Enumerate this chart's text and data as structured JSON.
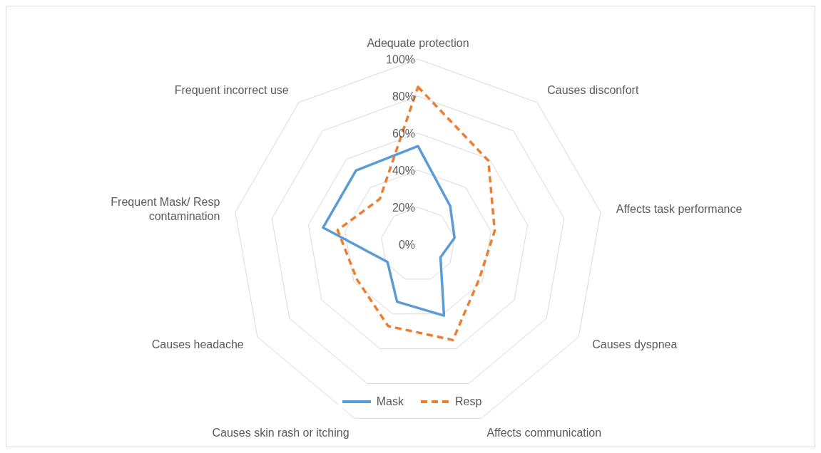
{
  "chart_data": {
    "type": "radar",
    "categories": [
      "Adequate protection",
      "Causes disconfort",
      "Affects task performance",
      "Causes dyspnea",
      "Affects communication",
      "Causes skin rash or itching",
      "Causes headache",
      "Frequent Mask/ Resp contamination",
      "Frequent incorrect use"
    ],
    "series": [
      {
        "name": "Mask",
        "color": "#5b9bd5",
        "line_style": "solid",
        "values": [
          53,
          27,
          20,
          14,
          41,
          33,
          19,
          52,
          52
        ]
      },
      {
        "name": "Resp",
        "color": "#ed7d31",
        "line_style": "dashed",
        "values": [
          85,
          59,
          42,
          38,
          55,
          47,
          38,
          44,
          32
        ]
      }
    ],
    "ylim": [
      0,
      100
    ],
    "yticks": [
      {
        "value": 0,
        "label": "0%"
      },
      {
        "value": 20,
        "label": "20%"
      },
      {
        "value": 40,
        "label": "40%"
      },
      {
        "value": 60,
        "label": "60%"
      },
      {
        "value": 80,
        "label": "80%"
      },
      {
        "value": 100,
        "label": "100%"
      }
    ],
    "grid": true,
    "legend": "bottom"
  }
}
